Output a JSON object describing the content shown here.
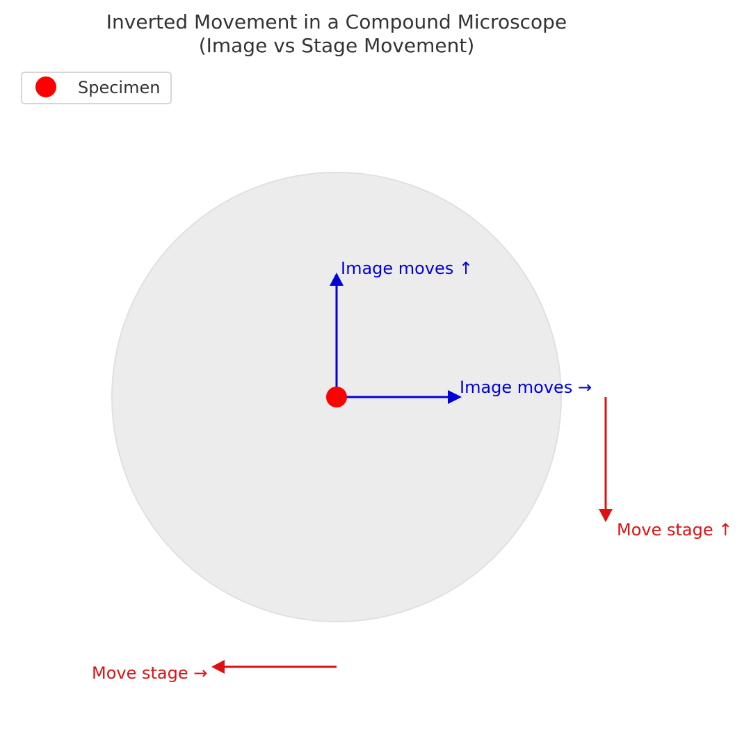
{
  "title": {
    "line1": "Inverted Movement in a Compound Microscope",
    "line2": "(Image vs Stage Movement)"
  },
  "legend": {
    "specimen_label": "Specimen"
  },
  "labels": {
    "image_up": "Image moves ↑",
    "image_right": "Image moves →",
    "stage_up": "Move stage ↑",
    "stage_right": "Move stage →"
  },
  "colors": {
    "field_of_view": "#ececed",
    "field_of_view_edge": "#e0e0e0",
    "specimen": "#ff0000",
    "image_arrows": "#0000dd",
    "stage_arrows": "#dd1111",
    "text": "#333333"
  }
}
